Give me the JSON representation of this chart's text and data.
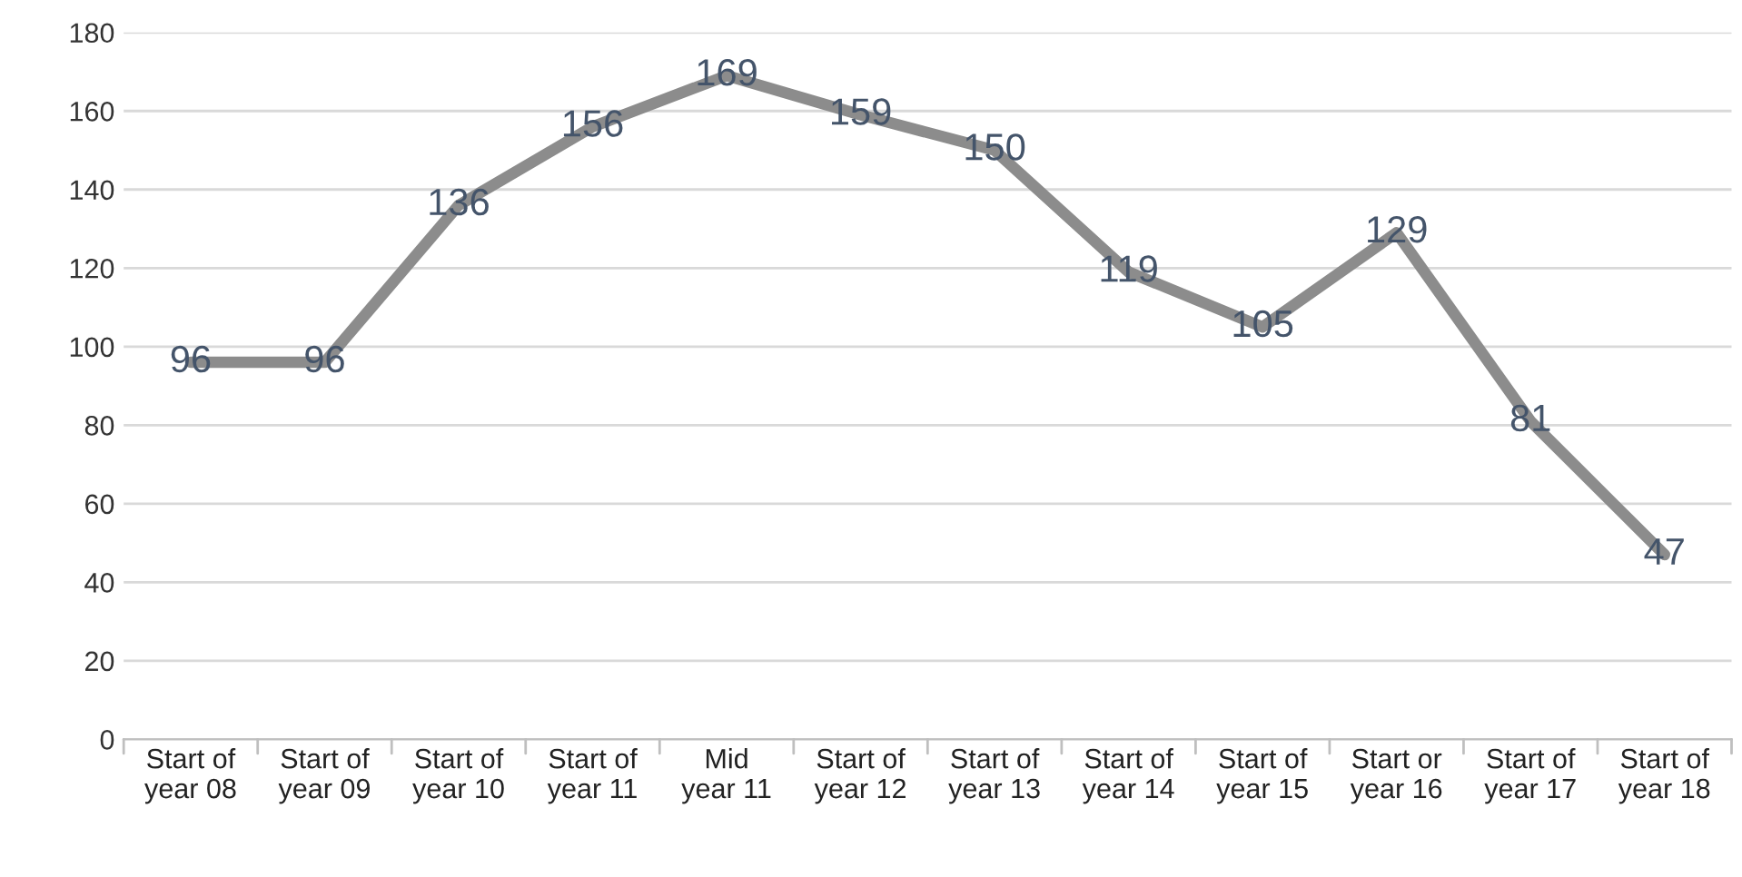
{
  "chart_data": {
    "type": "line",
    "categories": [
      "Start of\nyear 08",
      "Start of\nyear 09",
      "Start of\nyear 10",
      "Start of\nyear 11",
      "Mid\nyear 11",
      "Start of\nyear 12",
      "Start of\nyear 13",
      "Start of\nyear 14",
      "Start of\nyear 15",
      "Start or\nyear 16",
      "Start of\nyear 17",
      "Start of\nyear 18"
    ],
    "series": [
      {
        "color": "#8c8c8c",
        "values": [
          96,
          96,
          136,
          156,
          169,
          159,
          150,
          119,
          105,
          129,
          81,
          47
        ]
      }
    ],
    "ylim": [
      0,
      180
    ],
    "yticks": [
      0,
      20,
      40,
      60,
      80,
      100,
      120,
      140,
      160,
      180
    ],
    "grid": "y",
    "data_labels": true,
    "marker": "none",
    "line_style": "solid"
  }
}
